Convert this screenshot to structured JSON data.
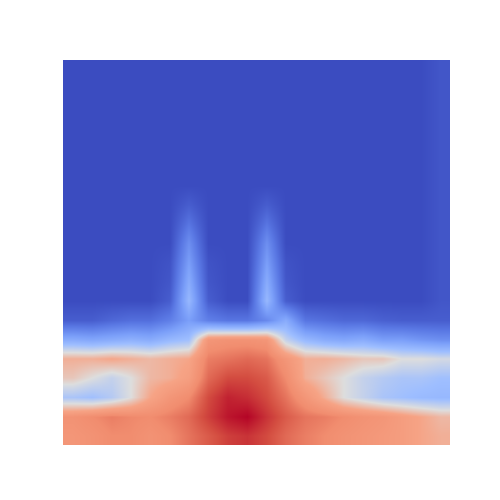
{
  "chart_data": {
    "type": "heatmap",
    "zlim": [
      0,
      1
    ],
    "tick_labels": false,
    "cells": [
      [
        0.7,
        0.72,
        0.75,
        0.75,
        0.72,
        0.75,
        0.8,
        0.85,
        0.9,
        0.92,
        0.88,
        0.82,
        0.78,
        0.75,
        0.72,
        0.7,
        0.68,
        0.66,
        0.62,
        0.6
      ],
      [
        0.72,
        0.75,
        0.78,
        0.76,
        0.75,
        0.78,
        0.82,
        0.9,
        0.97,
        1.0,
        0.92,
        0.85,
        0.8,
        0.78,
        0.75,
        0.72,
        0.7,
        0.66,
        0.62,
        0.58
      ],
      [
        0.4,
        0.38,
        0.42,
        0.5,
        0.62,
        0.7,
        0.75,
        0.88,
        0.95,
        0.93,
        0.88,
        0.8,
        0.7,
        0.6,
        0.5,
        0.45,
        0.4,
        0.38,
        0.36,
        0.35
      ],
      [
        0.55,
        0.5,
        0.45,
        0.5,
        0.58,
        0.6,
        0.65,
        0.82,
        0.88,
        0.88,
        0.85,
        0.75,
        0.6,
        0.55,
        0.5,
        0.45,
        0.42,
        0.4,
        0.4,
        0.38
      ],
      [
        0.6,
        0.6,
        0.62,
        0.6,
        0.58,
        0.6,
        0.62,
        0.78,
        0.8,
        0.82,
        0.8,
        0.7,
        0.6,
        0.6,
        0.58,
        0.55,
        0.55,
        0.5,
        0.5,
        0.48
      ],
      [
        0.3,
        0.28,
        0.3,
        0.32,
        0.3,
        0.35,
        0.38,
        0.7,
        0.72,
        0.72,
        0.7,
        0.45,
        0.35,
        0.3,
        0.28,
        0.3,
        0.25,
        0.25,
        0.22,
        0.2
      ],
      [
        0.05,
        0.05,
        0.08,
        0.1,
        0.1,
        0.15,
        0.25,
        0.15,
        0.12,
        0.12,
        0.18,
        0.3,
        0.12,
        0.1,
        0.08,
        0.08,
        0.06,
        0.05,
        0.05,
        0.05
      ],
      [
        0,
        0,
        0,
        0,
        0,
        0.05,
        0.35,
        0.05,
        0,
        0,
        0.35,
        0.05,
        0,
        0,
        0,
        0,
        0,
        0,
        0,
        0.03
      ],
      [
        0,
        0,
        0,
        0,
        0,
        0.03,
        0.3,
        0.03,
        0,
        0,
        0.3,
        0.03,
        0,
        0,
        0,
        0,
        0,
        0,
        0,
        0.03
      ],
      [
        0,
        0,
        0,
        0,
        0,
        0.02,
        0.25,
        0.02,
        0,
        0,
        0.25,
        0.02,
        0,
        0,
        0,
        0,
        0,
        0,
        0,
        0.03
      ],
      [
        0,
        0,
        0,
        0,
        0,
        0,
        0.2,
        0,
        0,
        0,
        0.2,
        0,
        0,
        0,
        0,
        0,
        0,
        0,
        0,
        0.03
      ],
      [
        0,
        0,
        0,
        0,
        0,
        0,
        0.12,
        0,
        0,
        0,
        0.12,
        0,
        0,
        0,
        0,
        0,
        0,
        0,
        0,
        0.03
      ],
      [
        0,
        0,
        0,
        0,
        0,
        0,
        0.05,
        0,
        0,
        0,
        0.05,
        0,
        0,
        0,
        0,
        0,
        0,
        0,
        0,
        0.03
      ],
      [
        0,
        0,
        0,
        0,
        0,
        0,
        0,
        0,
        0,
        0,
        0,
        0,
        0,
        0,
        0,
        0,
        0,
        0,
        0,
        0.03
      ],
      [
        0,
        0,
        0,
        0,
        0,
        0,
        0,
        0,
        0,
        0,
        0,
        0,
        0,
        0,
        0,
        0,
        0,
        0,
        0,
        0.03
      ],
      [
        0,
        0,
        0,
        0,
        0,
        0,
        0,
        0,
        0,
        0,
        0,
        0,
        0,
        0,
        0,
        0,
        0,
        0,
        0,
        0.03
      ],
      [
        0,
        0,
        0,
        0,
        0,
        0,
        0,
        0,
        0,
        0,
        0,
        0,
        0,
        0,
        0,
        0,
        0,
        0,
        0,
        0.03
      ],
      [
        0,
        0,
        0,
        0,
        0,
        0,
        0,
        0,
        0,
        0,
        0,
        0,
        0,
        0,
        0,
        0,
        0,
        0,
        0,
        0.03
      ],
      [
        0,
        0,
        0,
        0,
        0,
        0,
        0,
        0,
        0,
        0,
        0,
        0,
        0,
        0,
        0,
        0,
        0,
        0,
        0,
        0.03
      ],
      [
        0,
        0,
        0,
        0,
        0,
        0,
        0,
        0,
        0,
        0,
        0,
        0,
        0,
        0,
        0,
        0,
        0,
        0,
        0,
        0.03
      ]
    ]
  }
}
